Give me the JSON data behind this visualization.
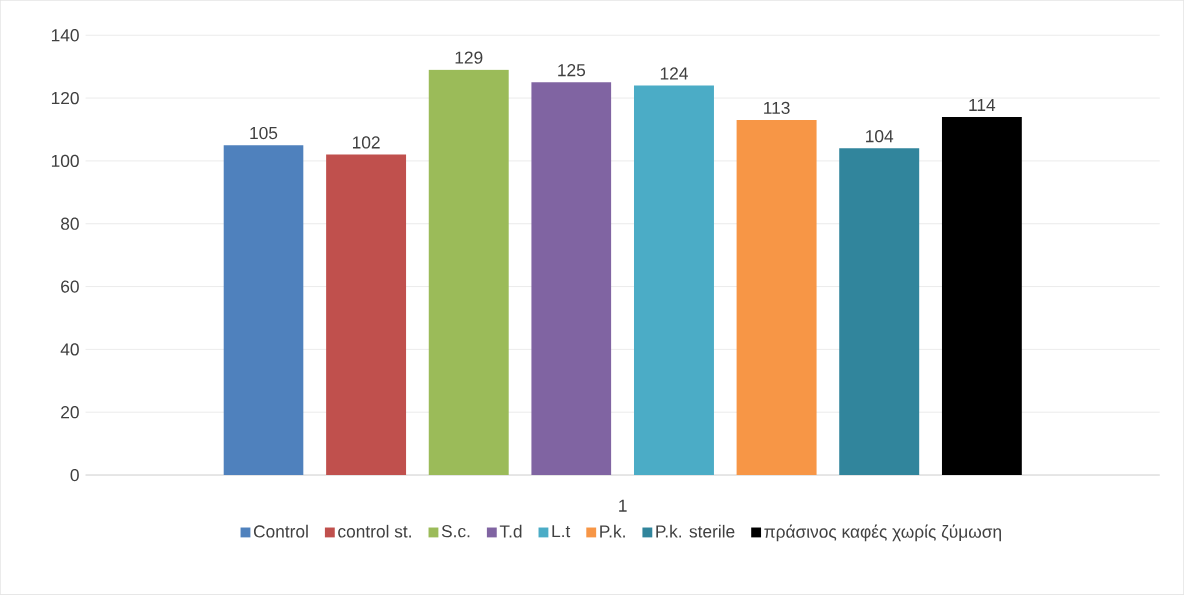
{
  "chart_data": {
    "type": "bar",
    "categories": [
      "1"
    ],
    "series": [
      {
        "name": "Control",
        "color": "#4f81bd",
        "values": [
          105
        ]
      },
      {
        "name": "control st.",
        "color": "#c0504d",
        "values": [
          102
        ]
      },
      {
        "name": "S.c.",
        "color": "#9bbb59",
        "values": [
          129
        ]
      },
      {
        "name": "T.d",
        "color": "#8064a2",
        "values": [
          125
        ]
      },
      {
        "name": "L.t",
        "color": "#4bacc6",
        "values": [
          124
        ]
      },
      {
        "name": "P.k.",
        "color": "#f79646",
        "values": [
          113
        ]
      },
      {
        "name": "P.k. sterile",
        "color": "#31859c",
        "values": [
          104
        ]
      },
      {
        "name": "πράσινος καφές χωρίς ζύμωση",
        "color": "#000000",
        "values": [
          114
        ]
      }
    ],
    "ylim": [
      0,
      140
    ],
    "yticks": [
      0,
      20,
      40,
      60,
      80,
      100,
      120,
      140
    ],
    "grid": "y",
    "legend": "bottom",
    "data_labels": true
  }
}
